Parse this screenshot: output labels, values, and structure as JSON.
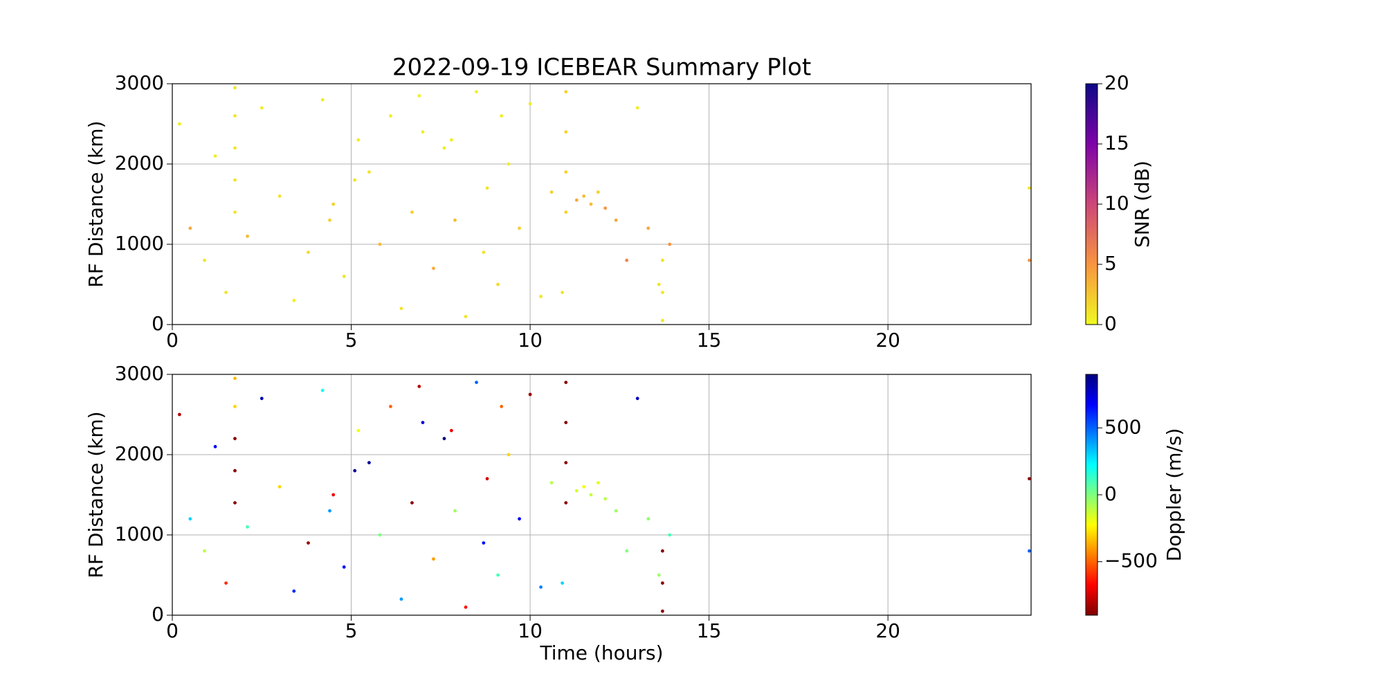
{
  "chart_data": [
    {
      "type": "scatter",
      "title": "2022-09-19 ICEBEAR Summary Plot",
      "ylabel": "RF Distance (km)",
      "xlim": [
        0,
        24
      ],
      "ylim": [
        0,
        3000
      ],
      "xticks": [
        0,
        5,
        10,
        15,
        20
      ],
      "yticks": [
        0,
        1000,
        2000,
        3000
      ],
      "grid": true,
      "colorbar": {
        "label": "SNR (dB)",
        "colormap": "plasma_r",
        "lim": [
          0,
          20
        ],
        "ticks": [
          0,
          5,
          10,
          15,
          20
        ]
      },
      "series": [
        {
          "x": [
            0.2,
            0.5,
            0.9,
            1.2,
            1.5,
            2.1,
            2.5,
            3.0,
            3.4,
            3.8,
            4.2,
            4.5,
            4.8,
            5.2,
            5.5,
            5.8,
            6.1,
            6.4,
            6.7,
            7.0,
            7.3,
            7.6,
            7.9,
            8.2,
            8.5,
            8.8,
            9.1,
            9.4,
            9.7,
            10.0,
            10.3,
            10.6,
            11.3,
            11.5,
            11.7,
            11.9,
            12.1,
            12.4,
            12.7,
            13.0,
            13.3,
            13.6,
            13.9,
            4.4,
            6.9,
            8.7,
            9.2,
            5.1,
            7.8,
            10.9,
            23.95,
            23.95,
            1.75,
            1.75,
            1.75,
            1.75,
            1.75,
            11.0,
            11.0,
            11.0,
            11.0,
            13.7,
            13.7,
            13.7
          ],
          "y": [
            2500,
            1200,
            800,
            2100,
            400,
            1100,
            2700,
            1600,
            300,
            900,
            2800,
            1500,
            600,
            2300,
            1900,
            1000,
            2600,
            200,
            1400,
            2400,
            700,
            2200,
            1300,
            100,
            2900,
            1700,
            500,
            2000,
            1200,
            2750,
            350,
            1650,
            1550,
            1600,
            1500,
            1650,
            1450,
            1300,
            800,
            2700,
            1200,
            500,
            1000,
            1300,
            2850,
            900,
            2600,
            1800,
            2300,
            400,
            1700,
            800,
            1400,
            1800,
            2200,
            2600,
            2950,
            1400,
            1900,
            2400,
            2900,
            50,
            400,
            800
          ],
          "c": [
            0.5,
            4,
            1,
            0.5,
            1,
            3,
            0.5,
            1,
            0.5,
            1.5,
            0.5,
            2,
            1,
            0.5,
            1,
            3,
            0.5,
            1,
            2,
            0.5,
            4,
            0.5,
            3,
            1,
            0.5,
            1,
            1.5,
            0.5,
            2,
            0.5,
            1,
            2,
            4,
            3,
            3,
            2,
            5,
            4,
            6,
            0.5,
            4,
            1,
            5,
            2,
            0.5,
            1,
            0.5,
            1,
            0.5,
            1,
            1,
            5,
            1,
            1,
            1,
            1,
            1,
            2,
            2,
            2,
            2,
            1,
            1,
            1
          ]
        }
      ]
    },
    {
      "type": "scatter",
      "ylabel": "RF Distance (km)",
      "xlabel": "Time (hours)",
      "xlim": [
        0,
        24
      ],
      "ylim": [
        0,
        3000
      ],
      "xticks": [
        0,
        5,
        10,
        15,
        20
      ],
      "yticks": [
        0,
        1000,
        2000,
        3000
      ],
      "grid": true,
      "colorbar": {
        "label": "Doppler (m/s)",
        "colormap": "jet_r",
        "lim": [
          -900,
          900
        ],
        "ticks": [
          {
            "value": -500,
            "label": "−500"
          },
          0,
          500
        ]
      },
      "series": [
        {
          "x": [
            0.2,
            0.5,
            0.9,
            1.2,
            1.5,
            2.1,
            2.5,
            3.0,
            3.4,
            3.8,
            4.2,
            4.5,
            4.8,
            5.2,
            5.5,
            5.8,
            6.1,
            6.4,
            6.7,
            7.0,
            7.3,
            7.6,
            7.9,
            8.2,
            8.5,
            8.8,
            9.1,
            9.4,
            9.7,
            10.0,
            10.3,
            10.6,
            11.3,
            11.5,
            11.7,
            11.9,
            12.1,
            12.4,
            12.7,
            13.0,
            13.3,
            13.6,
            13.9,
            4.4,
            6.9,
            8.7,
            9.2,
            5.1,
            7.8,
            10.9,
            23.95,
            23.95,
            1.75,
            1.75,
            1.75,
            1.75,
            1.75,
            11.0,
            11.0,
            11.0,
            11.0,
            13.7,
            13.7,
            13.7
          ],
          "y": [
            2500,
            1200,
            800,
            2100,
            400,
            1100,
            2700,
            1600,
            300,
            900,
            2800,
            1500,
            600,
            2300,
            1900,
            1000,
            2600,
            200,
            1400,
            2400,
            700,
            2200,
            1300,
            100,
            2900,
            1700,
            500,
            2000,
            1200,
            2750,
            350,
            1650,
            1550,
            1600,
            1500,
            1650,
            1450,
            1300,
            800,
            2700,
            1200,
            500,
            1000,
            1300,
            2850,
            900,
            2600,
            1800,
            2300,
            400,
            1700,
            800,
            1400,
            1800,
            2200,
            2600,
            2950,
            1400,
            1900,
            2400,
            2900,
            50,
            400,
            800
          ],
          "c": [
            -800,
            300,
            -100,
            700,
            -600,
            100,
            800,
            -300,
            600,
            -850,
            200,
            -700,
            650,
            -200,
            850,
            0,
            -500,
            400,
            -880,
            750,
            -400,
            900,
            -50,
            -650,
            500,
            -750,
            100,
            -300,
            700,
            -850,
            450,
            -100,
            -150,
            -200,
            -120,
            -180,
            -100,
            -50,
            0,
            800,
            -30,
            -60,
            100,
            400,
            -800,
            650,
            -500,
            850,
            -700,
            300,
            -850,
            500,
            -880,
            -880,
            -880,
            -300,
            -350,
            -880,
            -880,
            -880,
            -880,
            -880,
            -880,
            -880
          ]
        }
      ]
    }
  ]
}
